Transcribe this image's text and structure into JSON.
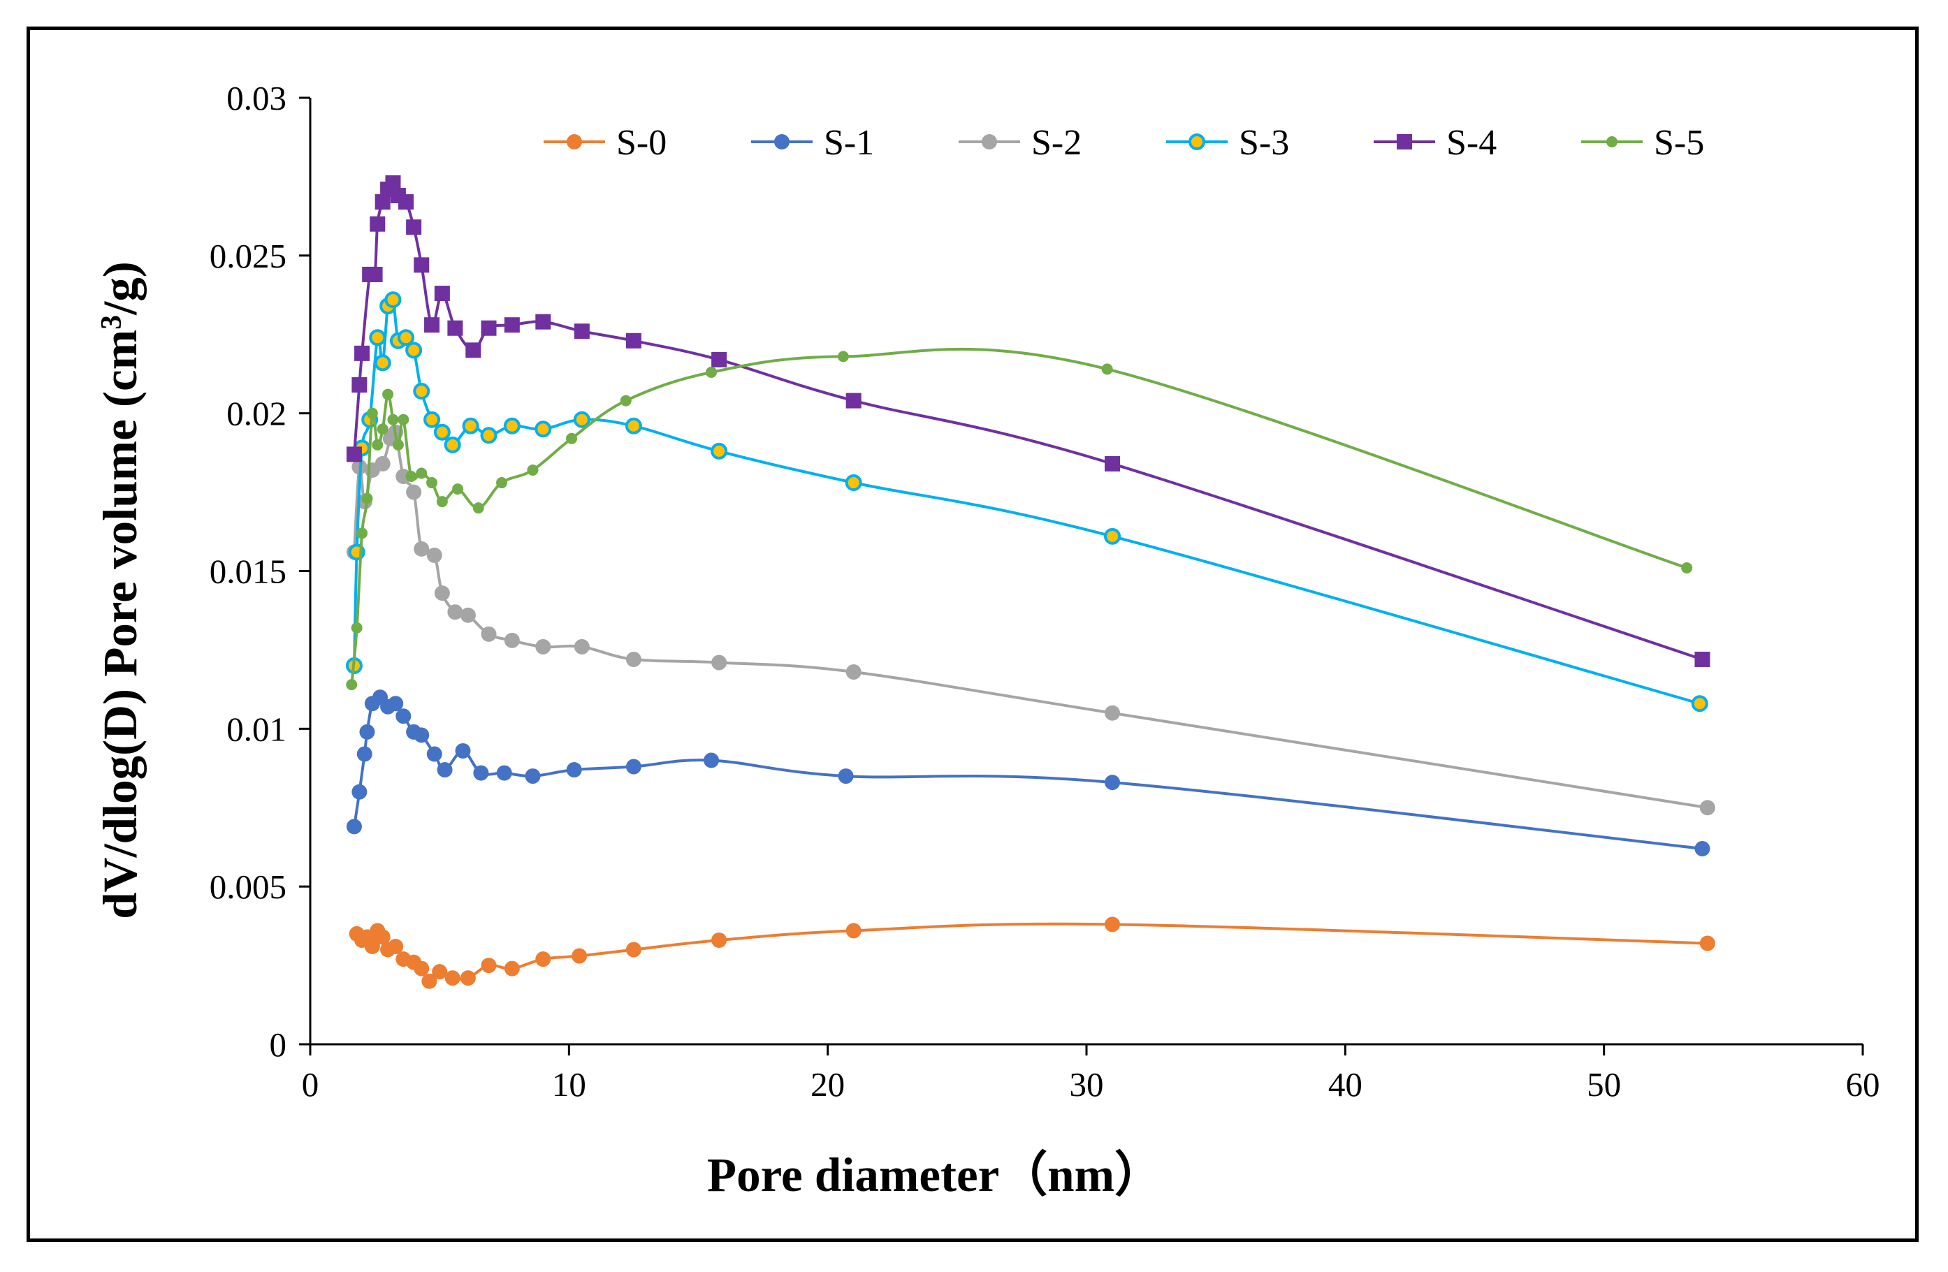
{
  "chart_data": {
    "type": "line",
    "title": "",
    "xlabel": "Pore diameter（nm）",
    "ylabel": "dV/dlog(D) Pore volume (cm3/g)",
    "ylabel_parts": {
      "before": "dV/dlog(D) Pore volume (cm",
      "sup": "3",
      "after": "/g)"
    },
    "xlim": [
      0,
      60
    ],
    "ylim": [
      0,
      0.03
    ],
    "x_ticks": [
      "0",
      "10",
      "20",
      "30",
      "40",
      "50",
      "60"
    ],
    "y_ticks": [
      "0",
      "0.005",
      "0.01",
      "0.015",
      "0.02",
      "0.025",
      "0.03"
    ],
    "legend_position": "top",
    "series": [
      {
        "name": "S-0",
        "color": "#ED7D31",
        "marker": "circle",
        "x": [
          1.8,
          2.0,
          2.2,
          2.4,
          2.6,
          2.8,
          3.0,
          3.3,
          3.6,
          4.0,
          4.3,
          4.6,
          5.0,
          5.5,
          6.1,
          6.9,
          7.8,
          9.0,
          10.4,
          12.5,
          15.8,
          21.0,
          31.0,
          54.0
        ],
        "y": [
          0.0035,
          0.0033,
          0.0034,
          0.0031,
          0.0036,
          0.0034,
          0.003,
          0.0031,
          0.0027,
          0.0026,
          0.0024,
          0.002,
          0.0023,
          0.0021,
          0.0021,
          0.0025,
          0.0024,
          0.0027,
          0.0028,
          0.003,
          0.0033,
          0.0036,
          0.0038,
          0.0032
        ]
      },
      {
        "name": "S-1",
        "color": "#4472C4",
        "marker": "circle",
        "x": [
          1.7,
          1.9,
          2.1,
          2.2,
          2.4,
          2.7,
          3.0,
          3.3,
          3.6,
          4.0,
          4.3,
          4.8,
          5.2,
          5.9,
          6.6,
          7.5,
          8.6,
          10.2,
          12.5,
          15.5,
          20.7,
          31.0,
          53.8
        ],
        "y": [
          0.0069,
          0.008,
          0.0092,
          0.0099,
          0.0108,
          0.011,
          0.0107,
          0.0108,
          0.0104,
          0.0099,
          0.0098,
          0.0092,
          0.0087,
          0.0093,
          0.0086,
          0.0086,
          0.0085,
          0.0087,
          0.0088,
          0.009,
          0.0085,
          0.0083,
          0.0062
        ]
      },
      {
        "name": "S-2",
        "color": "#A5A5A5",
        "marker": "circle",
        "x": [
          1.7,
          1.9,
          2.1,
          2.4,
          2.8,
          3.1,
          3.3,
          3.6,
          4.0,
          4.3,
          4.8,
          5.1,
          5.6,
          6.1,
          6.9,
          7.8,
          9.0,
          10.5,
          12.5,
          15.8,
          21.0,
          31.0,
          54.0
        ],
        "y": [
          0.0156,
          0.0183,
          0.0172,
          0.0182,
          0.0184,
          0.0192,
          0.0194,
          0.018,
          0.0175,
          0.0157,
          0.0155,
          0.0143,
          0.0137,
          0.0136,
          0.013,
          0.0128,
          0.0126,
          0.0126,
          0.0122,
          0.0121,
          0.0118,
          0.0105,
          0.0075
        ]
      },
      {
        "name": "S-3",
        "color": "#00B0F0",
        "marker": "circle-yellow",
        "x": [
          1.7,
          1.8,
          2.0,
          2.3,
          2.6,
          2.8,
          3.0,
          3.2,
          3.4,
          3.7,
          4.0,
          4.3,
          4.7,
          5.1,
          5.5,
          6.2,
          6.9,
          7.8,
          9.0,
          10.5,
          12.5,
          15.8,
          21.0,
          31.0,
          53.7
        ],
        "y": [
          0.012,
          0.0156,
          0.0189,
          0.0198,
          0.0224,
          0.0216,
          0.0234,
          0.0236,
          0.0223,
          0.0224,
          0.022,
          0.0207,
          0.0198,
          0.0194,
          0.019,
          0.0196,
          0.0193,
          0.0196,
          0.0195,
          0.0198,
          0.0196,
          0.0188,
          0.0178,
          0.0161,
          0.0108
        ]
      },
      {
        "name": "S-4",
        "color": "#7030A0",
        "marker": "square",
        "x": [
          1.7,
          1.9,
          2.0,
          2.3,
          2.5,
          2.6,
          2.8,
          3.0,
          3.2,
          3.4,
          3.7,
          4.0,
          4.3,
          4.7,
          5.1,
          5.6,
          6.3,
          6.9,
          7.8,
          9.0,
          10.5,
          12.5,
          15.8,
          21.0,
          31.0,
          53.8
        ],
        "y": [
          0.0187,
          0.0209,
          0.0219,
          0.0244,
          0.0244,
          0.026,
          0.0267,
          0.0271,
          0.0273,
          0.0269,
          0.0267,
          0.0259,
          0.0247,
          0.0228,
          0.0238,
          0.0227,
          0.022,
          0.0227,
          0.0228,
          0.0229,
          0.0226,
          0.0223,
          0.0217,
          0.0204,
          0.0184,
          0.0122
        ]
      },
      {
        "name": "S-5",
        "color": "#70AD47",
        "marker": "dot",
        "x": [
          1.6,
          1.8,
          2.0,
          2.2,
          2.4,
          2.6,
          2.8,
          3.0,
          3.2,
          3.4,
          3.6,
          3.9,
          4.3,
          4.7,
          5.1,
          5.7,
          6.5,
          7.4,
          8.6,
          10.1,
          12.2,
          15.5,
          20.6,
          30.8,
          53.2
        ],
        "y": [
          0.0114,
          0.0132,
          0.0162,
          0.0173,
          0.02,
          0.019,
          0.0195,
          0.0206,
          0.0198,
          0.019,
          0.0198,
          0.018,
          0.0181,
          0.0178,
          0.0172,
          0.0176,
          0.017,
          0.0178,
          0.0182,
          0.0192,
          0.0204,
          0.0213,
          0.0218,
          0.0214,
          0.0151
        ]
      }
    ]
  }
}
